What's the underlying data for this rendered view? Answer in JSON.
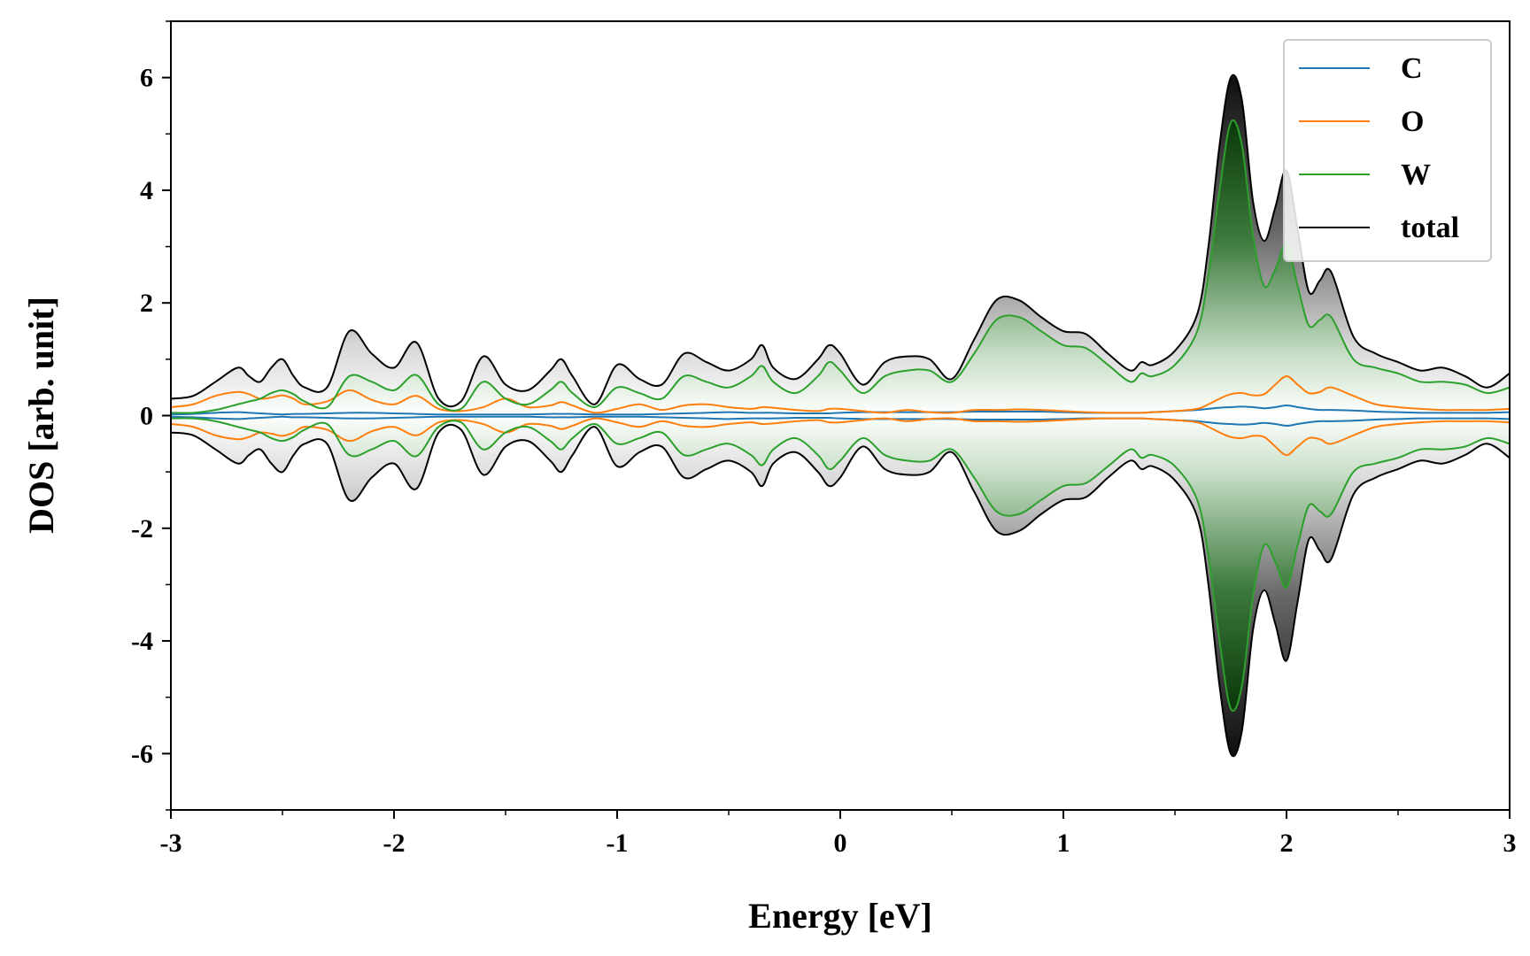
{
  "chart_data": {
    "type": "line",
    "title": "",
    "xlabel": "Energy [eV]",
    "ylabel": "DOS [arb. unit]",
    "xlim": [
      -3,
      3
    ],
    "ylim": [
      -7,
      7
    ],
    "xticks": [
      -3,
      -2,
      -1,
      0,
      1,
      2,
      3
    ],
    "xtick_labels": [
      "-3",
      "-2",
      "-1",
      "0",
      "1",
      "2",
      "3"
    ],
    "yticks": [
      -6,
      -4,
      -2,
      0,
      2,
      4,
      6
    ],
    "ytick_labels": [
      "-6",
      "-4",
      "-2",
      "0",
      "2",
      "4",
      "6"
    ],
    "grid": false,
    "legend_position": "top-right",
    "mirrored": true,
    "x": [
      -3.0,
      -2.9,
      -2.8,
      -2.7,
      -2.65,
      -2.6,
      -2.55,
      -2.5,
      -2.45,
      -2.4,
      -2.3,
      -2.2,
      -2.1,
      -2.0,
      -1.9,
      -1.8,
      -1.7,
      -1.6,
      -1.5,
      -1.4,
      -1.3,
      -1.25,
      -1.2,
      -1.1,
      -1.0,
      -0.9,
      -0.8,
      -0.7,
      -0.6,
      -0.5,
      -0.4,
      -0.35,
      -0.3,
      -0.2,
      -0.1,
      -0.05,
      0.0,
      0.1,
      0.2,
      0.3,
      0.4,
      0.5,
      0.6,
      0.7,
      0.8,
      0.9,
      1.0,
      1.1,
      1.2,
      1.3,
      1.35,
      1.4,
      1.5,
      1.6,
      1.65,
      1.7,
      1.75,
      1.8,
      1.85,
      1.9,
      1.95,
      2.0,
      2.05,
      2.1,
      2.15,
      2.2,
      2.3,
      2.4,
      2.5,
      2.6,
      2.7,
      2.8,
      2.9,
      3.0
    ],
    "series": [
      {
        "name": "C",
        "color": "#1f77b4",
        "values": [
          0.02,
          0.03,
          0.05,
          0.06,
          0.05,
          0.04,
          0.03,
          0.02,
          0.03,
          0.03,
          0.04,
          0.05,
          0.05,
          0.04,
          0.03,
          0.02,
          0.02,
          0.02,
          0.02,
          0.02,
          0.03,
          0.03,
          0.03,
          0.02,
          0.02,
          0.02,
          0.03,
          0.04,
          0.05,
          0.06,
          0.05,
          0.05,
          0.05,
          0.04,
          0.04,
          0.04,
          0.05,
          0.06,
          0.06,
          0.06,
          0.06,
          0.06,
          0.07,
          0.07,
          0.07,
          0.07,
          0.06,
          0.05,
          0.05,
          0.05,
          0.05,
          0.06,
          0.08,
          0.1,
          0.12,
          0.14,
          0.15,
          0.16,
          0.15,
          0.13,
          0.15,
          0.18,
          0.15,
          0.12,
          0.1,
          0.1,
          0.09,
          0.07,
          0.06,
          0.05,
          0.05,
          0.05,
          0.05,
          0.06
        ]
      },
      {
        "name": "O",
        "color": "#ff7f0e",
        "values": [
          0.15,
          0.2,
          0.35,
          0.42,
          0.38,
          0.3,
          0.32,
          0.36,
          0.3,
          0.2,
          0.25,
          0.45,
          0.28,
          0.2,
          0.35,
          0.12,
          0.08,
          0.15,
          0.3,
          0.15,
          0.18,
          0.24,
          0.18,
          0.05,
          0.12,
          0.2,
          0.1,
          0.18,
          0.2,
          0.15,
          0.12,
          0.15,
          0.14,
          0.1,
          0.08,
          0.12,
          0.12,
          0.08,
          0.05,
          0.1,
          0.06,
          0.05,
          0.1,
          0.1,
          0.11,
          0.1,
          0.08,
          0.06,
          0.05,
          0.05,
          0.05,
          0.06,
          0.08,
          0.12,
          0.2,
          0.3,
          0.38,
          0.4,
          0.36,
          0.38,
          0.55,
          0.7,
          0.55,
          0.4,
          0.42,
          0.5,
          0.35,
          0.2,
          0.15,
          0.12,
          0.1,
          0.1,
          0.1,
          0.12
        ]
      },
      {
        "name": "W",
        "color": "#2ca02c",
        "values": [
          0.05,
          0.05,
          0.1,
          0.2,
          0.25,
          0.3,
          0.4,
          0.45,
          0.38,
          0.25,
          0.15,
          0.7,
          0.6,
          0.45,
          0.72,
          0.2,
          0.12,
          0.6,
          0.3,
          0.2,
          0.45,
          0.6,
          0.4,
          0.15,
          0.5,
          0.4,
          0.3,
          0.7,
          0.6,
          0.5,
          0.7,
          0.88,
          0.6,
          0.4,
          0.7,
          0.95,
          0.8,
          0.4,
          0.7,
          0.8,
          0.8,
          0.6,
          1.1,
          1.7,
          1.75,
          1.5,
          1.25,
          1.2,
          0.9,
          0.6,
          0.75,
          0.7,
          0.9,
          1.5,
          2.5,
          4.0,
          5.2,
          4.8,
          3.2,
          2.3,
          2.6,
          3.05,
          2.3,
          1.6,
          1.7,
          1.75,
          1.0,
          0.85,
          0.75,
          0.6,
          0.6,
          0.55,
          0.4,
          0.5
        ]
      },
      {
        "name": "total",
        "color": "#000000",
        "values": [
          0.3,
          0.35,
          0.6,
          0.85,
          0.7,
          0.6,
          0.85,
          1.0,
          0.7,
          0.5,
          0.5,
          1.5,
          1.1,
          0.85,
          1.3,
          0.3,
          0.25,
          1.05,
          0.55,
          0.45,
          0.8,
          1.0,
          0.7,
          0.2,
          0.9,
          0.65,
          0.55,
          1.1,
          0.95,
          0.8,
          1.0,
          1.25,
          0.85,
          0.65,
          1.0,
          1.25,
          1.1,
          0.55,
          0.95,
          1.05,
          1.0,
          0.65,
          1.35,
          2.05,
          2.05,
          1.75,
          1.5,
          1.45,
          1.1,
          0.8,
          0.95,
          0.9,
          1.15,
          1.8,
          3.0,
          4.8,
          6.0,
          5.6,
          3.8,
          3.1,
          3.7,
          4.35,
          3.3,
          2.2,
          2.4,
          2.55,
          1.4,
          1.1,
          0.95,
          0.8,
          0.85,
          0.7,
          0.5,
          0.75
        ]
      }
    ]
  },
  "legend": {
    "items": [
      {
        "label": "C",
        "color": "#1f77b4"
      },
      {
        "label": "O",
        "color": "#ff7f0e"
      },
      {
        "label": "W",
        "color": "#2ca02c"
      },
      {
        "label": "total",
        "color": "#000000"
      }
    ]
  }
}
